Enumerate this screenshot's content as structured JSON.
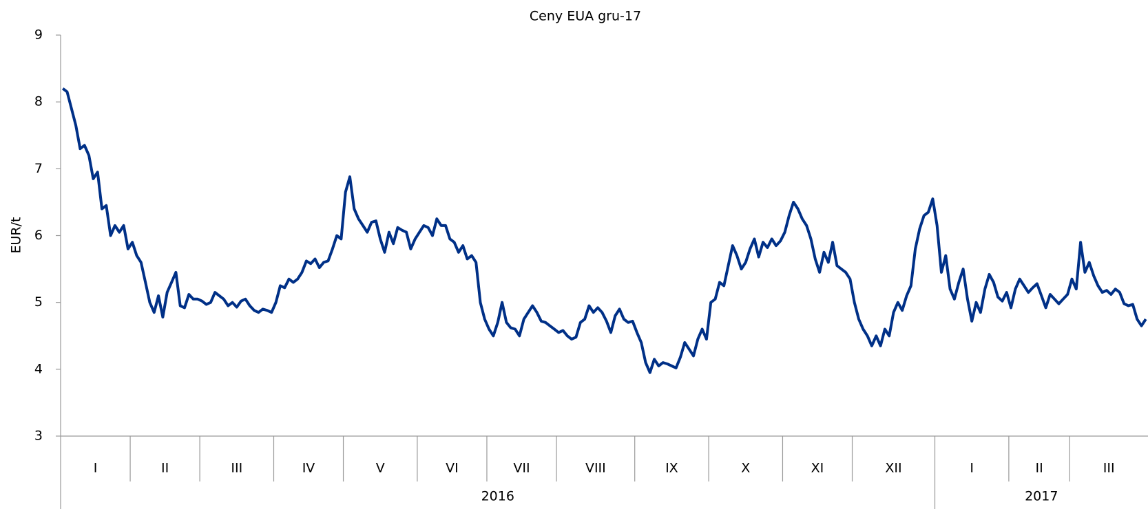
{
  "chart_data": {
    "type": "line",
    "title": "Ceny EUA gru-17",
    "ylabel": "EUR/t",
    "color": "#003087",
    "ylim": [
      3,
      9
    ],
    "yticks": [
      3,
      4,
      5,
      6,
      7,
      8,
      9
    ],
    "years": [
      {
        "label": "2016",
        "months": [
          {
            "label": "I",
            "values": [
              8.2,
              8.15,
              7.9,
              7.65,
              7.3,
              7.35,
              7.2,
              6.85,
              6.95,
              6.4,
              6.45,
              6.0,
              6.15,
              6.05,
              6.15,
              5.8
            ]
          },
          {
            "label": "II",
            "values": [
              5.9,
              5.7,
              5.6,
              5.3,
              5.0,
              4.85,
              5.1,
              4.78,
              5.15,
              5.3,
              5.45,
              4.95,
              4.92,
              5.12,
              5.05,
              5.05
            ]
          },
          {
            "label": "III",
            "values": [
              5.02,
              4.97,
              5.0,
              5.15,
              5.1,
              5.05,
              4.95,
              5.0,
              4.93,
              5.02,
              5.05,
              4.95,
              4.88,
              4.85,
              4.9,
              4.88,
              4.85
            ]
          },
          {
            "label": "IV",
            "values": [
              5.0,
              5.25,
              5.22,
              5.35,
              5.3,
              5.35,
              5.45,
              5.62,
              5.58,
              5.65,
              5.52,
              5.6,
              5.62,
              5.8,
              6.0,
              5.95
            ]
          },
          {
            "label": "V",
            "values": [
              6.65,
              6.88,
              6.4,
              6.25,
              6.15,
              6.05,
              6.2,
              6.22,
              5.95,
              5.75,
              6.05,
              5.88,
              6.12,
              6.08,
              6.05,
              5.8,
              5.95
            ]
          },
          {
            "label": "VI",
            "values": [
              6.05,
              6.15,
              6.12,
              6.0,
              6.25,
              6.15,
              6.15,
              5.95,
              5.9,
              5.75,
              5.85,
              5.65,
              5.7,
              5.6,
              5.0,
              4.75
            ]
          },
          {
            "label": "VII",
            "values": [
              4.6,
              4.5,
              4.7,
              5.0,
              4.7,
              4.62,
              4.6,
              4.5,
              4.75,
              4.85,
              4.95,
              4.85,
              4.72,
              4.7,
              4.65,
              4.6
            ]
          },
          {
            "label": "VIII",
            "values": [
              4.55,
              4.58,
              4.5,
              4.45,
              4.48,
              4.7,
              4.75,
              4.95,
              4.85,
              4.92,
              4.85,
              4.72,
              4.55,
              4.8,
              4.9,
              4.75,
              4.7,
              4.72
            ]
          },
          {
            "label": "IX",
            "values": [
              4.55,
              4.4,
              4.1,
              3.95,
              4.15,
              4.05,
              4.1,
              4.08,
              4.05,
              4.02,
              4.18,
              4.4,
              4.3,
              4.2,
              4.45,
              4.6,
              4.45
            ]
          },
          {
            "label": "X",
            "values": [
              5.0,
              5.05,
              5.3,
              5.25,
              5.55,
              5.85,
              5.7,
              5.5,
              5.6,
              5.8,
              5.95,
              5.68,
              5.9,
              5.82,
              5.95,
              5.85,
              5.92
            ]
          },
          {
            "label": "XI",
            "values": [
              6.05,
              6.3,
              6.5,
              6.4,
              6.25,
              6.15,
              5.95,
              5.65,
              5.45,
              5.75,
              5.6,
              5.9,
              5.55,
              5.5,
              5.45,
              5.35
            ]
          },
          {
            "label": "XII",
            "values": [
              5.0,
              4.75,
              4.6,
              4.5,
              4.35,
              4.5,
              4.35,
              4.6,
              4.5,
              4.85,
              5.0,
              4.88,
              5.1,
              5.25,
              5.8,
              6.1,
              6.3,
              6.35,
              6.55
            ]
          }
        ]
      },
      {
        "label": "2017",
        "months": [
          {
            "label": "I",
            "values": [
              6.15,
              5.45,
              5.7,
              5.2,
              5.05,
              5.3,
              5.5,
              5.05,
              4.72,
              5.0,
              4.85,
              5.2,
              5.42,
              5.3,
              5.08,
              5.02,
              5.15
            ]
          },
          {
            "label": "II",
            "values": [
              4.92,
              5.2,
              5.35,
              5.25,
              5.15,
              5.22,
              5.28,
              5.1,
              4.92,
              5.12,
              5.05,
              4.98,
              5.05,
              5.12
            ]
          },
          {
            "label": "III",
            "values": [
              5.35,
              5.2,
              5.9,
              5.45,
              5.6,
              5.4,
              5.25,
              5.15,
              5.18,
              5.12,
              5.2,
              5.15,
              4.98,
              4.95,
              4.97,
              4.75,
              4.65,
              4.75
            ]
          }
        ]
      }
    ]
  }
}
